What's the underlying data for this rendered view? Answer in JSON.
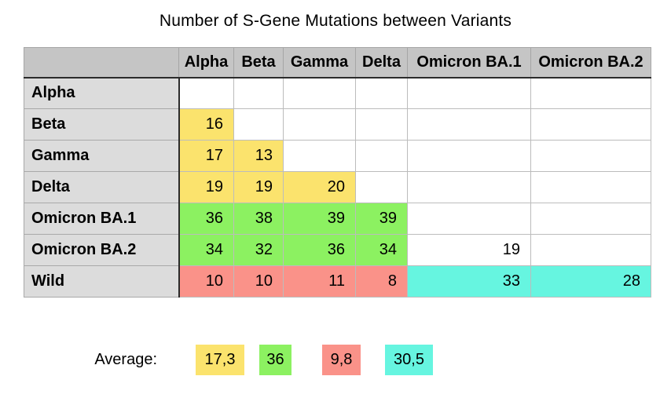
{
  "title": "Number of S-Gene Mutations between Variants",
  "colors": {
    "yellow": "#fbe36d",
    "green": "#8cf161",
    "red": "#fa9289",
    "cyan": "#66f5e0",
    "header_bg": "#c5c5c5",
    "row_header_bg": "#dcdcdc",
    "dark_border": "#2b2b2b"
  },
  "table": {
    "column_headers": [
      "Alpha",
      "Beta",
      "Gamma",
      "Delta",
      "Omicron BA.1",
      "Omicron BA.2"
    ],
    "rows": [
      {
        "label": "Alpha",
        "cells": [
          {},
          {},
          {},
          {},
          {},
          {}
        ]
      },
      {
        "label": "Beta",
        "cells": [
          {
            "v": "16",
            "c": "yellow"
          },
          {},
          {},
          {},
          {},
          {}
        ]
      },
      {
        "label": "Gamma",
        "cells": [
          {
            "v": "17",
            "c": "yellow"
          },
          {
            "v": "13",
            "c": "yellow"
          },
          {},
          {},
          {},
          {}
        ]
      },
      {
        "label": "Delta",
        "cells": [
          {
            "v": "19",
            "c": "yellow"
          },
          {
            "v": "19",
            "c": "yellow"
          },
          {
            "v": "20",
            "c": "yellow"
          },
          {},
          {},
          {}
        ]
      },
      {
        "label": "Omicron BA.1",
        "cells": [
          {
            "v": "36",
            "c": "green"
          },
          {
            "v": "38",
            "c": "green"
          },
          {
            "v": "39",
            "c": "green"
          },
          {
            "v": "39",
            "c": "green"
          },
          {},
          {}
        ]
      },
      {
        "label": "Omicron BA.2",
        "cells": [
          {
            "v": "34",
            "c": "green"
          },
          {
            "v": "32",
            "c": "green"
          },
          {
            "v": "36",
            "c": "green"
          },
          {
            "v": "34",
            "c": "green"
          },
          {
            "v": "19",
            "c": "white"
          },
          {}
        ]
      },
      {
        "label": "Wild",
        "cells": [
          {
            "v": "10",
            "c": "red"
          },
          {
            "v": "10",
            "c": "red"
          },
          {
            "v": "11",
            "c": "red"
          },
          {
            "v": "8",
            "c": "red"
          },
          {
            "v": "33",
            "c": "cyan"
          },
          {
            "v": "28",
            "c": "cyan"
          }
        ]
      }
    ]
  },
  "average": {
    "label": "Average:",
    "swatches": [
      {
        "value": "17,3",
        "color": "yellow"
      },
      {
        "value": "36",
        "color": "green"
      },
      {
        "value": "9,8",
        "color": "red"
      },
      {
        "value": "30,5",
        "color": "cyan"
      }
    ]
  },
  "chart_data": {
    "type": "heatmap",
    "title": "Number of S-Gene Mutations between Variants",
    "x_labels": [
      "Alpha",
      "Beta",
      "Gamma",
      "Delta",
      "Omicron BA.1",
      "Omicron BA.2"
    ],
    "y_labels": [
      "Alpha",
      "Beta",
      "Gamma",
      "Delta",
      "Omicron BA.1",
      "Omicron BA.2",
      "Wild"
    ],
    "matrix": [
      [
        null,
        null,
        null,
        null,
        null,
        null
      ],
      [
        16,
        null,
        null,
        null,
        null,
        null
      ],
      [
        17,
        13,
        null,
        null,
        null,
        null
      ],
      [
        19,
        19,
        20,
        null,
        null,
        null
      ],
      [
        36,
        38,
        39,
        39,
        null,
        null
      ],
      [
        34,
        32,
        36,
        34,
        19,
        null
      ],
      [
        10,
        10,
        11,
        8,
        33,
        28
      ]
    ],
    "group_averages": [
      {
        "group": "yellow",
        "value": 17.3
      },
      {
        "group": "green",
        "value": 36
      },
      {
        "group": "red",
        "value": 9.8
      },
      {
        "group": "cyan",
        "value": 30.5
      }
    ],
    "legend_position": "bottom"
  }
}
